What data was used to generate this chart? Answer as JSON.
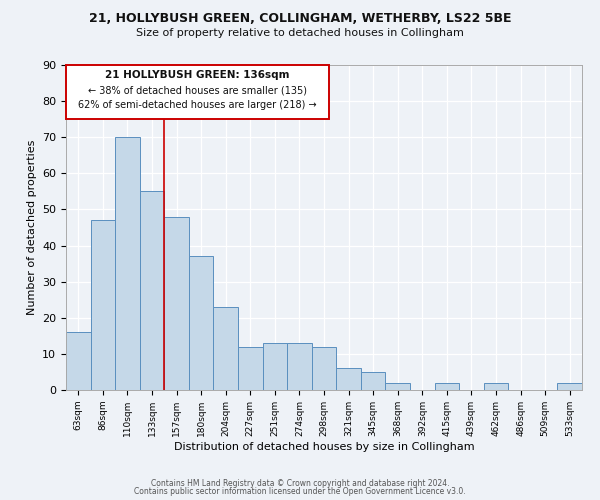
{
  "title": "21, HOLLYBUSH GREEN, COLLINGHAM, WETHERBY, LS22 5BE",
  "subtitle": "Size of property relative to detached houses in Collingham",
  "xlabel": "Distribution of detached houses by size in Collingham",
  "ylabel": "Number of detached properties",
  "bar_labels": [
    "63sqm",
    "86sqm",
    "110sqm",
    "133sqm",
    "157sqm",
    "180sqm",
    "204sqm",
    "227sqm",
    "251sqm",
    "274sqm",
    "298sqm",
    "321sqm",
    "345sqm",
    "368sqm",
    "392sqm",
    "415sqm",
    "439sqm",
    "462sqm",
    "486sqm",
    "509sqm",
    "533sqm"
  ],
  "bar_values": [
    16,
    47,
    70,
    55,
    48,
    37,
    23,
    12,
    13,
    13,
    12,
    6,
    5,
    2,
    0,
    2,
    0,
    2,
    0,
    0,
    2
  ],
  "bar_color": "#c5d8e8",
  "bar_edge_color": "#5a8fbf",
  "ylim": [
    0,
    90
  ],
  "yticks": [
    0,
    10,
    20,
    30,
    40,
    50,
    60,
    70,
    80,
    90
  ],
  "annotation_line1": "21 HOLLYBUSH GREEN: 136sqm",
  "annotation_line2": "← 38% of detached houses are smaller (135)",
  "annotation_line3": "62% of semi-detached houses are larger (218) →",
  "annotation_box_color": "#ffffff",
  "annotation_box_edge": "#cc0000",
  "red_line_x": 3.5,
  "footer1": "Contains HM Land Registry data © Crown copyright and database right 2024.",
  "footer2": "Contains public sector information licensed under the Open Government Licence v3.0.",
  "background_color": "#eef2f7"
}
